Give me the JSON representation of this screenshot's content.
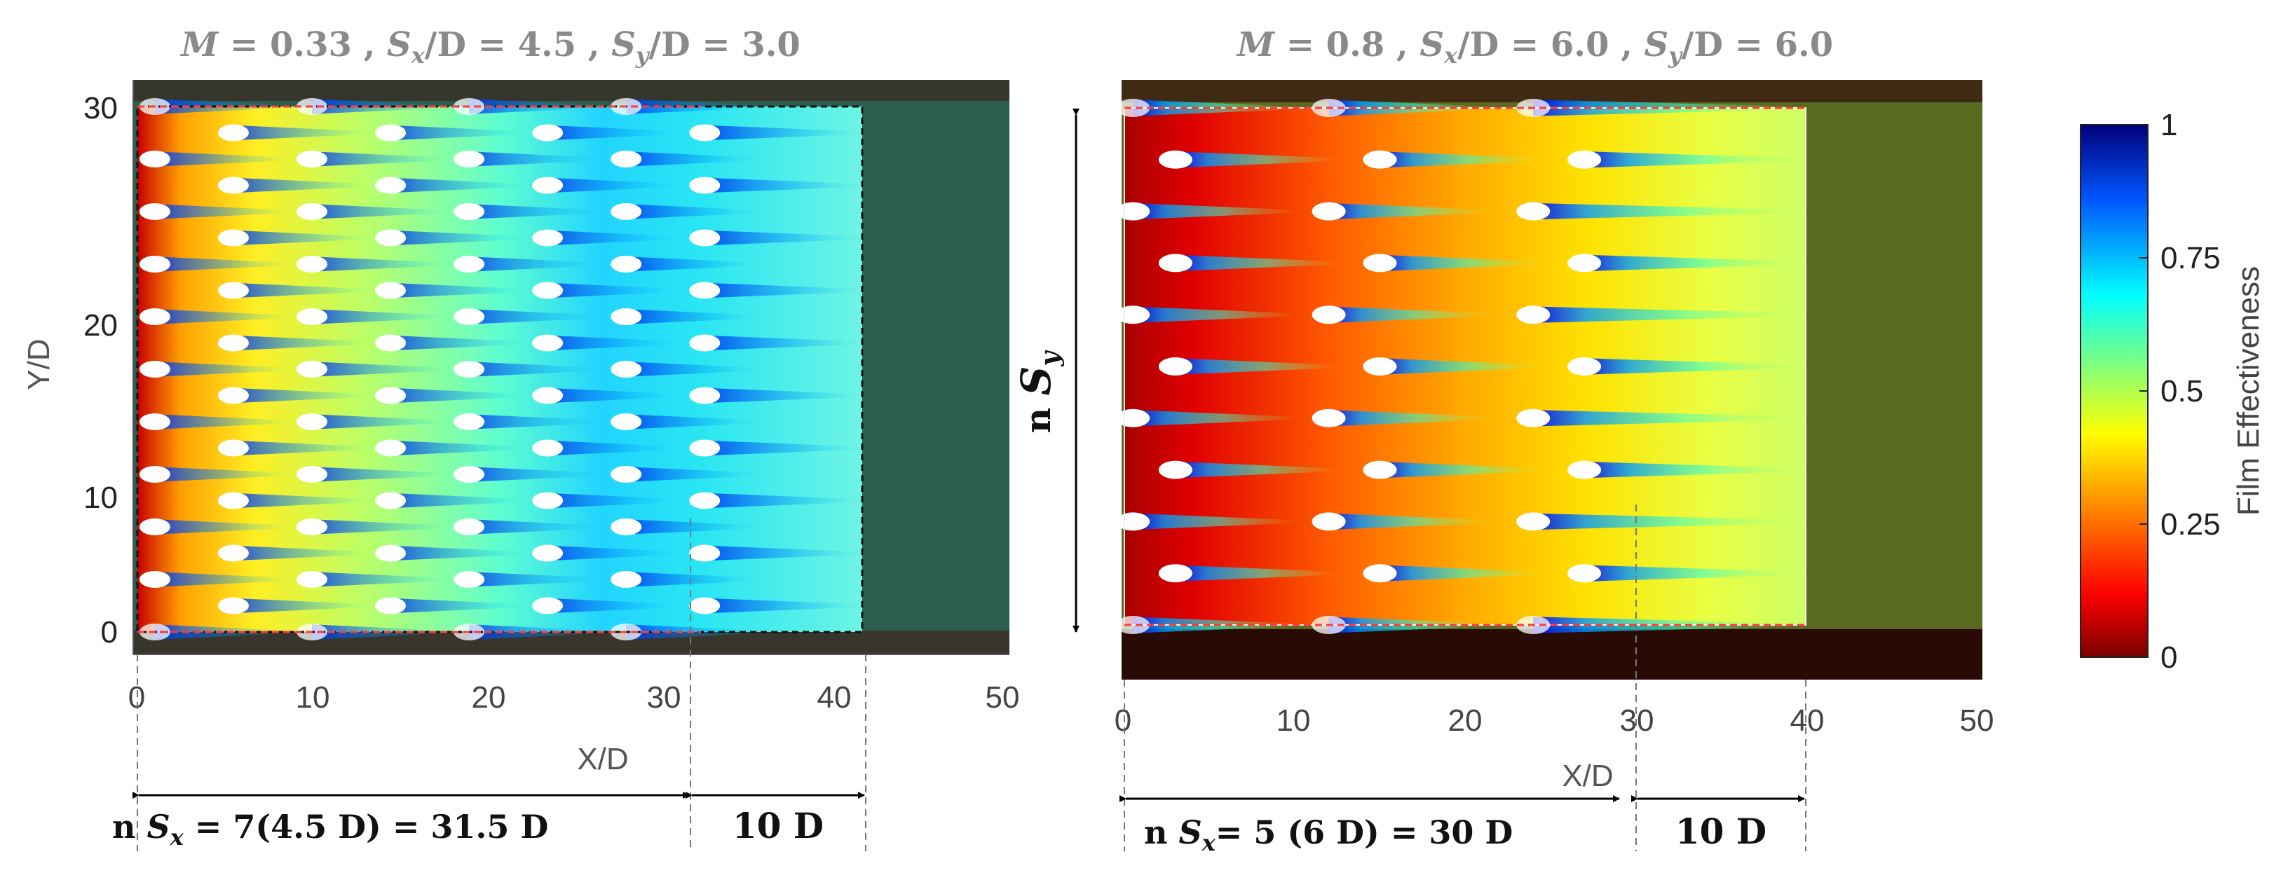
{
  "chart_data": [
    {
      "type": "heatmap",
      "title": "M = 0.33 , S_x/D = 4.5 , S_y/D = 3.0",
      "title_parts": {
        "m_sym": "M",
        "m_val": "= 0.33 ,",
        "sx_sym": "S",
        "sx_sub": "x",
        "sx_val": "/D = 4.5 ,",
        "sy_sym": "S",
        "sy_sub": "y",
        "sy_val": "/D = 3.0"
      },
      "xlabel": "X/D",
      "ylabel": "Y/D",
      "xlim": [
        0,
        50
      ],
      "ylim": [
        -1,
        31
      ],
      "xticks": [
        0,
        10,
        20,
        30,
        40,
        50
      ],
      "xtick_labels": [
        "0",
        "10",
        "20",
        "30",
        "40",
        "50"
      ],
      "yticks": [
        0,
        10,
        20,
        30
      ],
      "ytick_labels": [
        "0",
        "10",
        "20",
        "30"
      ],
      "spacing_x": 4.5,
      "spacing_y": 3.0,
      "n_columns": 8,
      "holes_per_row": 11,
      "array_end_x": 31.5,
      "region_end_x": 41.5,
      "annotations": {
        "nsx_prefix": "n ",
        "nsx_sym": "S",
        "nsx_sub": "x",
        "nsx_value": " = 7(4.5 D) = 31.5 D",
        "extension_label": "10 D"
      }
    },
    {
      "type": "heatmap",
      "title": "M = 0.8 , S_x/D = 6.0 , S_y/D = 6.0",
      "title_parts": {
        "m_sym": "M",
        "m_val": "= 0.8 ,",
        "sx_sym": "S",
        "sx_sub": "x",
        "sx_val": "/D = 6.0 ,",
        "sy_sym": "S",
        "sy_sub": "y",
        "sy_val": "/D = 6.0"
      },
      "xlabel": "X/D",
      "xlim": [
        0,
        50
      ],
      "ylim": [
        -1,
        31
      ],
      "xticks": [
        0,
        10,
        20,
        30,
        40,
        50
      ],
      "xtick_labels": [
        "0",
        "10",
        "20",
        "30",
        "40",
        "50"
      ],
      "spacing_x": 6.0,
      "spacing_y": 6.0,
      "n_columns": 6,
      "holes_per_row": 6,
      "array_end_x": 30,
      "region_end_x": 40,
      "annotations": {
        "nsx_prefix": "n ",
        "nsx_sym": "S",
        "nsx_sub": "x",
        "nsx_value": "= 5 (6 D) = 30 D",
        "extension_label": "10 D",
        "nsy_prefix": "n ",
        "nsy_sym": "S",
        "nsy_sub": "y"
      }
    }
  ],
  "colorbar": {
    "label": "Film Effectiveness",
    "range": [
      0,
      1
    ],
    "ticks": [
      0,
      0.25,
      0.5,
      0.75,
      1
    ],
    "tick_labels": [
      "0",
      "0.25",
      "0.5",
      "0.75",
      "1"
    ],
    "colormap": "jet"
  },
  "colors": {
    "array_boundary": "#ff3b3b",
    "region_boundary": "#111111",
    "arrow": "#000000",
    "guide": "#777777"
  }
}
